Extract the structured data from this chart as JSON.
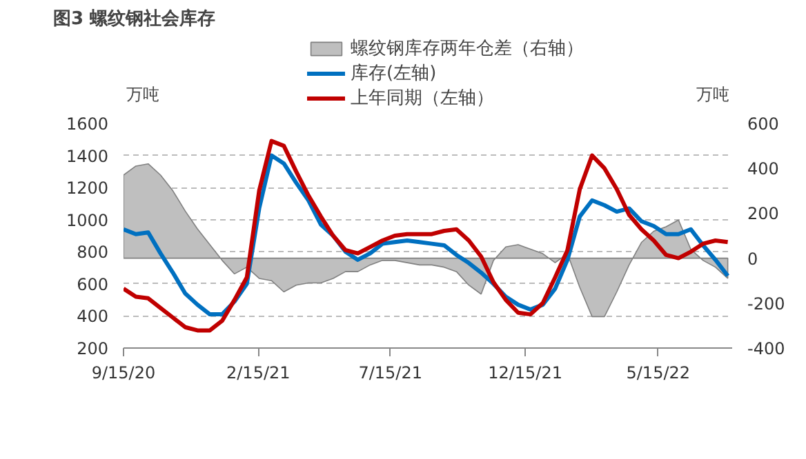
{
  "chart_data": {
    "type": "line",
    "title": "图3 螺纹钢社会库存",
    "ylabel": "万吨",
    "y2label": "万吨",
    "x": [
      "2020-09-15",
      "2020-09-29",
      "2020-10-13",
      "2020-10-27",
      "2020-11-10",
      "2020-11-24",
      "2020-12-08",
      "2020-12-22",
      "2021-01-05",
      "2021-01-19",
      "2021-02-02",
      "2021-02-16",
      "2021-03-02",
      "2021-03-16",
      "2021-03-30",
      "2021-04-13",
      "2021-04-27",
      "2021-05-11",
      "2021-05-25",
      "2021-06-08",
      "2021-06-22",
      "2021-07-06",
      "2021-07-20",
      "2021-08-03",
      "2021-08-17",
      "2021-08-31",
      "2021-09-14",
      "2021-09-28",
      "2021-10-12",
      "2021-10-26",
      "2021-11-09",
      "2021-11-23",
      "2021-12-07",
      "2021-12-21",
      "2022-01-04",
      "2022-01-18",
      "2022-02-01",
      "2022-02-15",
      "2022-03-01",
      "2022-03-15",
      "2022-03-29",
      "2022-04-12",
      "2022-04-26",
      "2022-05-10",
      "2022-05-24",
      "2022-06-07",
      "2022-06-21",
      "2022-07-05",
      "2022-07-19",
      "2022-08-02"
    ],
    "series": [
      {
        "name": "螺纹钢库存两年仓差（右轴）",
        "type": "area",
        "axis": "y2",
        "color": "#bfbfbf",
        "values": [
          370,
          410,
          420,
          370,
          300,
          210,
          130,
          60,
          -10,
          -70,
          -40,
          -90,
          -100,
          -150,
          -120,
          -110,
          -110,
          -90,
          -60,
          -60,
          -30,
          -10,
          -10,
          -20,
          -30,
          -30,
          -40,
          -60,
          -120,
          -160,
          -10,
          50,
          60,
          40,
          20,
          -20,
          20,
          -130,
          -260,
          -260,
          -150,
          -30,
          70,
          120,
          140,
          170,
          40,
          -10,
          -40,
          -90
        ]
      },
      {
        "name": "库存(左轴)",
        "color": "#0070c0",
        "values": [
          940,
          910,
          920,
          790,
          670,
          540,
          470,
          410,
          410,
          490,
          600,
          1070,
          1400,
          1350,
          1230,
          1120,
          970,
          900,
          800,
          750,
          790,
          850,
          860,
          870,
          860,
          850,
          840,
          780,
          730,
          670,
          600,
          520,
          470,
          440,
          470,
          570,
          750,
          1020,
          1120,
          1090,
          1050,
          1070,
          990,
          960,
          910,
          910,
          940,
          840,
          750,
          650
        ]
      },
      {
        "name": "上年同期（左轴）",
        "color": "#c00000",
        "values": [
          570,
          520,
          510,
          450,
          390,
          330,
          310,
          310,
          370,
          500,
          640,
          1180,
          1490,
          1460,
          1300,
          1150,
          1020,
          900,
          810,
          790,
          830,
          870,
          900,
          910,
          910,
          910,
          930,
          940,
          870,
          770,
          610,
          500,
          420,
          410,
          480,
          640,
          810,
          1190,
          1400,
          1320,
          1190,
          1030,
          940,
          870,
          780,
          760,
          800,
          850,
          870,
          860
        ]
      }
    ],
    "xlim": [
      "2020-09-15",
      "2022-08-07"
    ],
    "xticks": [
      {
        "value": "2020-09-15",
        "label": "9/15/20"
      },
      {
        "value": "2021-02-15",
        "label": "2/15/21"
      },
      {
        "value": "2021-07-15",
        "label": "7/15/21"
      },
      {
        "value": "2021-12-15",
        "label": "12/15/21"
      },
      {
        "value": "2022-05-15",
        "label": "5/15/22"
      }
    ],
    "ylim": [
      200,
      1600
    ],
    "yticks": [
      200,
      400,
      600,
      800,
      1000,
      1200,
      1400,
      1600
    ],
    "y2lim": [
      -400,
      600
    ],
    "y2ticks": [
      -400,
      -200,
      0,
      200,
      400,
      600
    ],
    "grid": "y",
    "legend": "top"
  }
}
